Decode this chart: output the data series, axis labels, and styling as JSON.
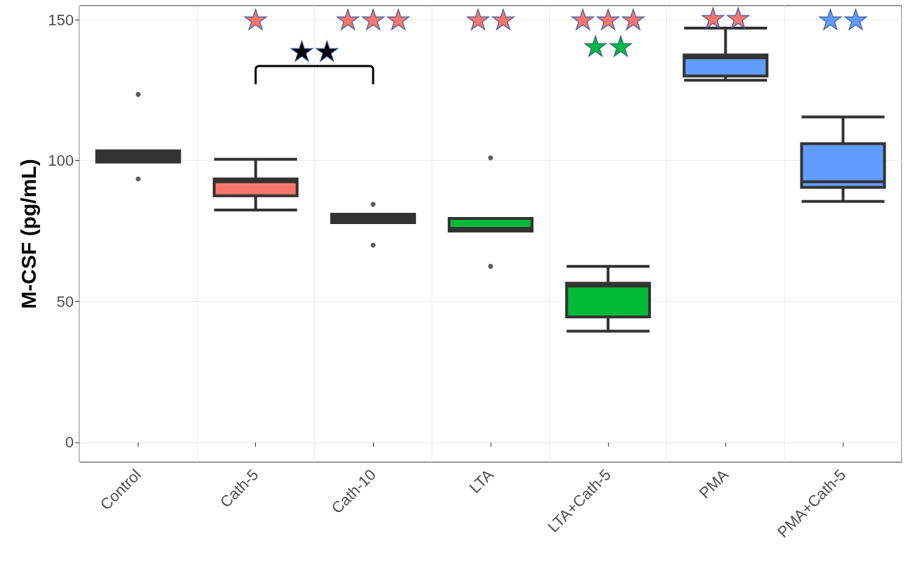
{
  "chart_data": {
    "type": "box",
    "ylabel": "M-CSF (pg/mL)",
    "categories": [
      "Control",
      "Cath-5",
      "Cath-10",
      "LTA",
      "LTA+Cath-5",
      "PMA",
      "PMA+Cath-5"
    ],
    "colors": [
      "#333333",
      "#f8766d",
      "#333333",
      "#00ba38",
      "#00ba38",
      "#619cff",
      "#619cff"
    ],
    "boxes": [
      {
        "low": 99.5,
        "q1": 99.5,
        "median": 102.5,
        "q3": 103.5,
        "high": 103.5,
        "outliers": [
          123.5,
          93.5
        ]
      },
      {
        "low": 82.5,
        "q1": 87.5,
        "median": 92.5,
        "q3": 93.5,
        "high": 100.5
      },
      {
        "low": 78,
        "q1": 78,
        "median": 79,
        "q3": 81,
        "high": 81,
        "outliers": [
          84.5,
          70
        ]
      },
      {
        "low": 75,
        "q1": 75,
        "median": 76,
        "q3": 79.5,
        "high": 79.5,
        "outliers": [
          101,
          62.5
        ]
      },
      {
        "low": 39.5,
        "q1": 44.5,
        "median": 55.5,
        "q3": 56.5,
        "high": 62.5
      },
      {
        "low": 128.5,
        "q1": 130,
        "median": 136.5,
        "q3": 137.5,
        "high": 147
      },
      {
        "low": 85.5,
        "q1": 90.5,
        "median": 92.5,
        "q3": 106,
        "high": 115.5
      }
    ],
    "ylim": [
      -7,
      155
    ],
    "yticks": [
      0,
      50,
      100,
      150
    ],
    "grid": true,
    "annotations": [
      "★",
      "★★★",
      "★★",
      "★★★",
      "★★",
      "★★",
      "★★",
      "★★"
    ]
  }
}
